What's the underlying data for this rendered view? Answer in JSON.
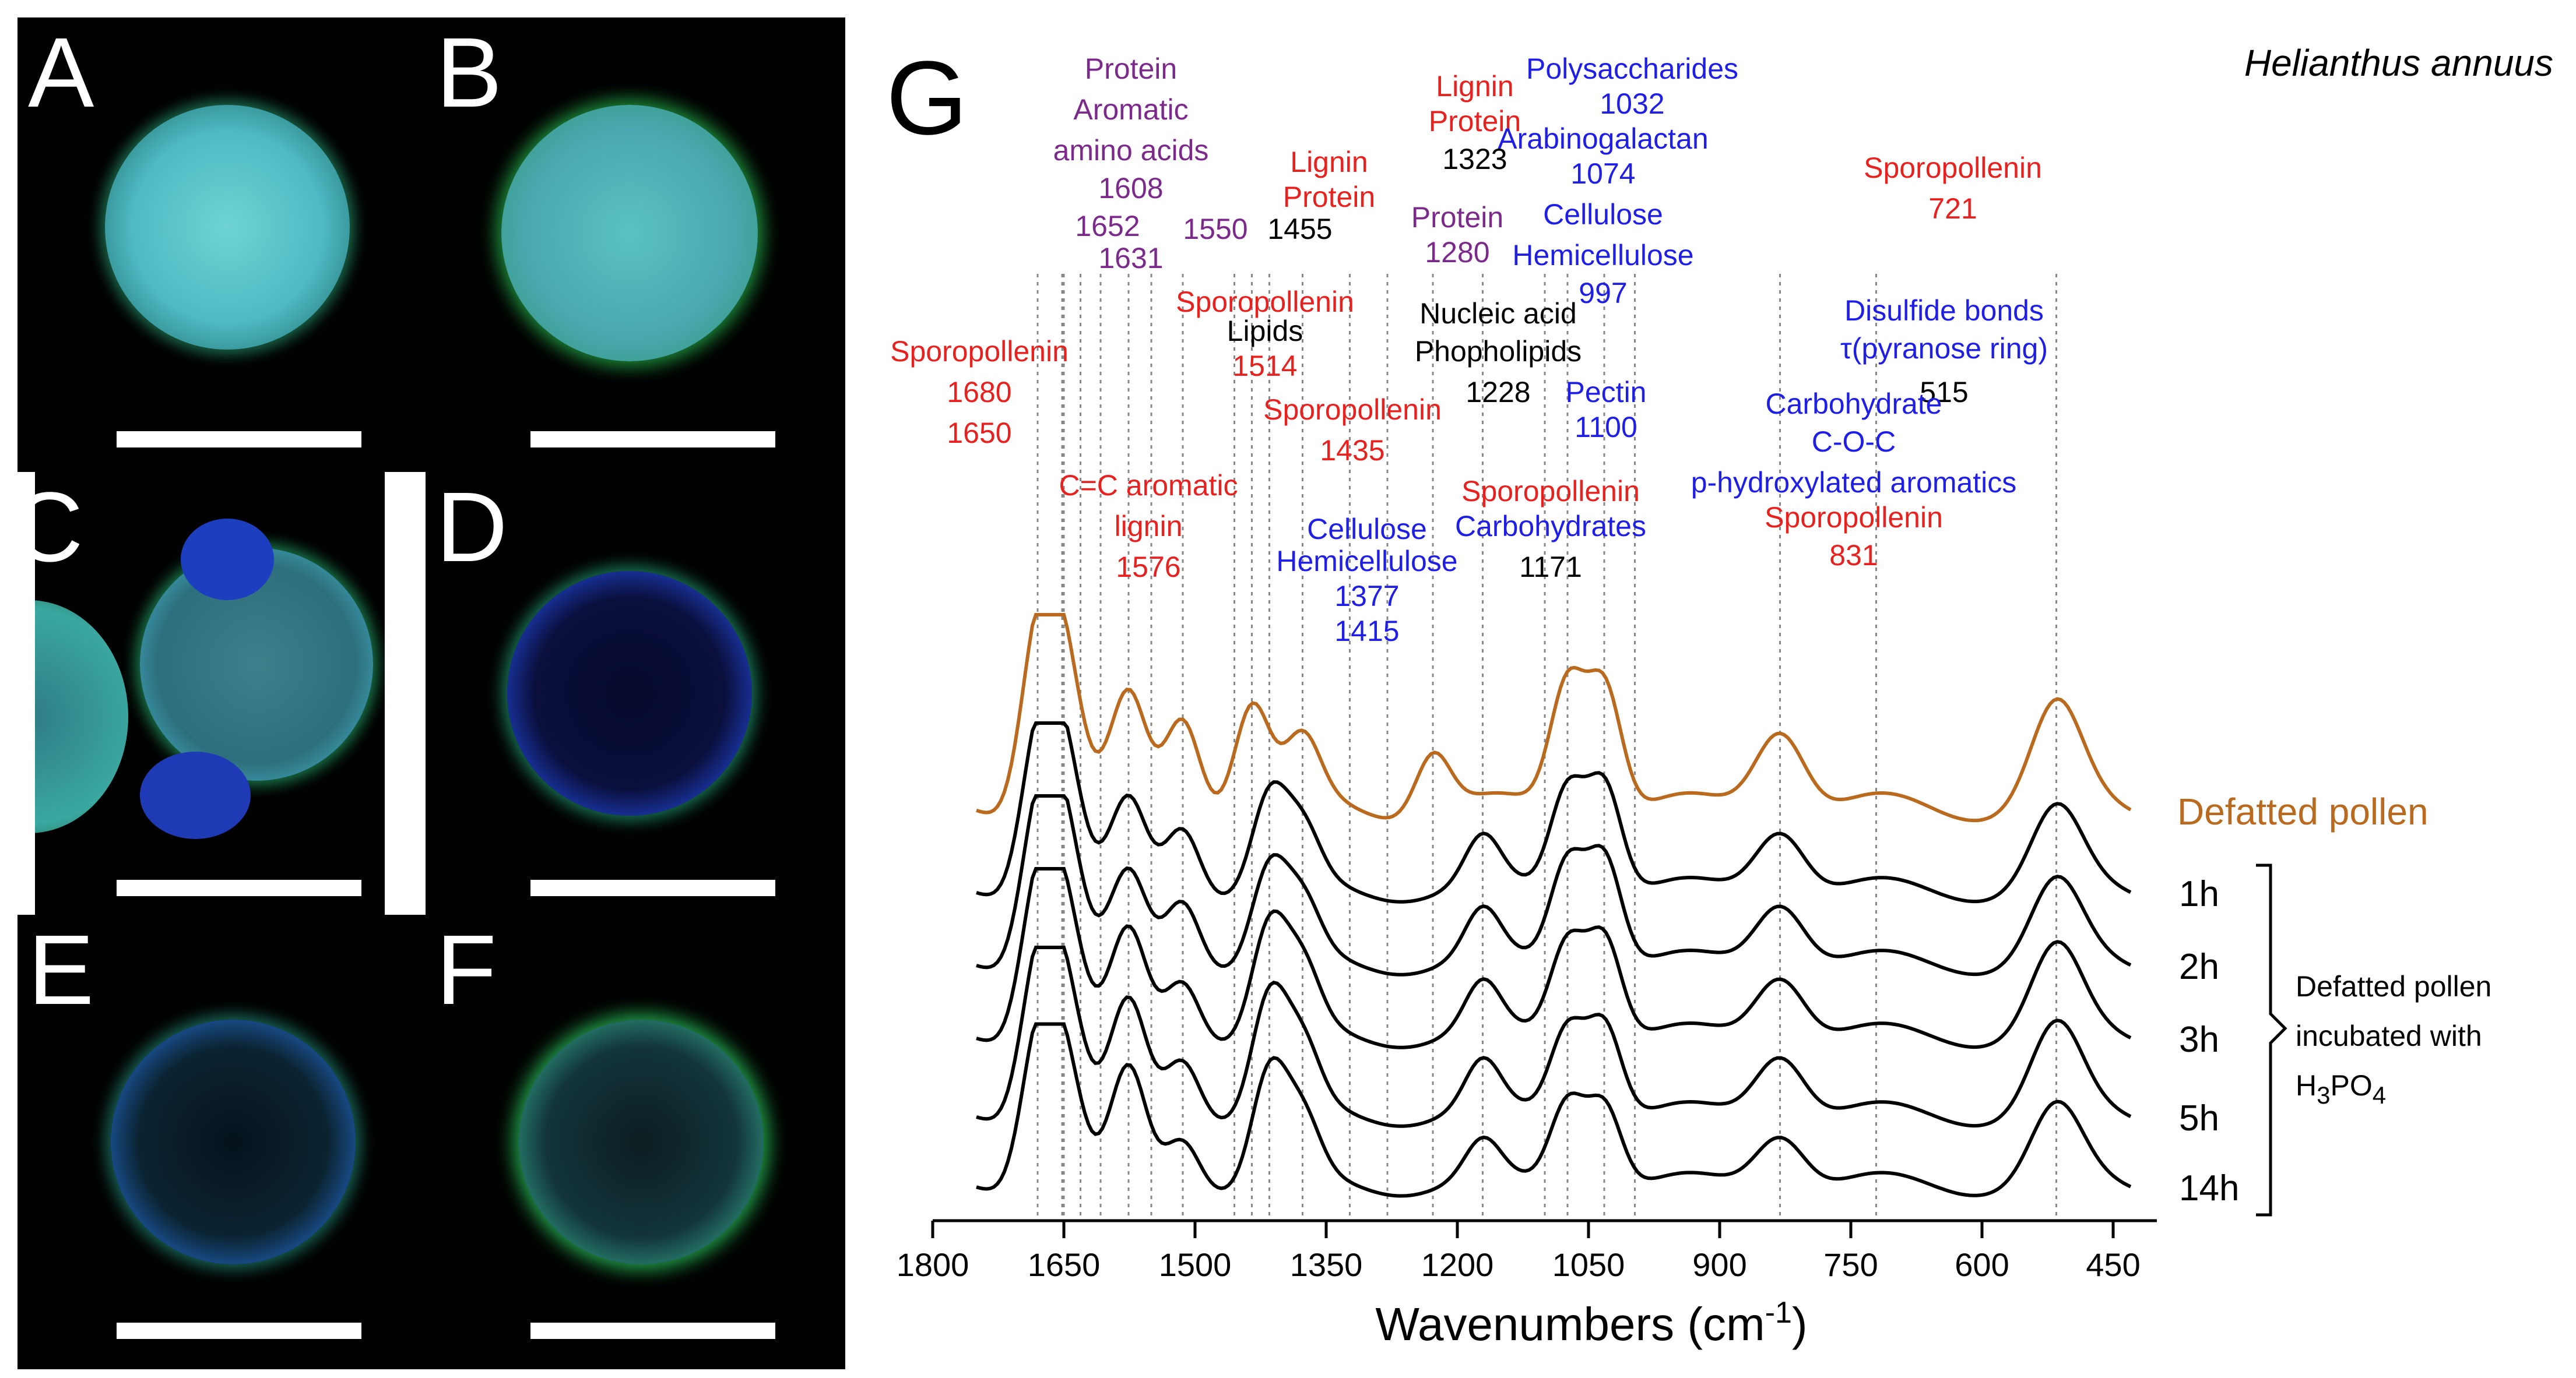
{
  "panels": [
    "A",
    "B",
    "C",
    "D",
    "E",
    "F"
  ],
  "panel_g_letter": "G",
  "species": "Helianthus annuus",
  "colors": {
    "defatted": "#b96a1e",
    "series": "#000000",
    "red": "#e8201e",
    "purple": "#7b2a8c",
    "blue": "#1e1ee6",
    "black": "#000000"
  },
  "annotations": [
    {
      "text": "Protein",
      "color": "purple"
    },
    {
      "text": "Aromatic",
      "color": "purple"
    },
    {
      "text": "amino acids",
      "color": "purple"
    },
    {
      "text": "1608",
      "color": "purple"
    },
    {
      "text": "1652",
      "color": "purple"
    },
    {
      "text": "1550",
      "color": "purple"
    },
    {
      "text": "1631",
      "color": "purple"
    },
    {
      "text": "Lignin",
      "color": "red"
    },
    {
      "text": "Protein",
      "color": "red"
    },
    {
      "text": "1455",
      "color": "black"
    },
    {
      "text": "Lignin",
      "color": "red"
    },
    {
      "text": "Protein",
      "color": "red"
    },
    {
      "text": "1323",
      "color": "black"
    },
    {
      "text": "Protein",
      "color": "purple"
    },
    {
      "text": "1280",
      "color": "purple"
    },
    {
      "text": "Polysaccharides",
      "color": "blue"
    },
    {
      "text": "1032",
      "color": "blue"
    },
    {
      "text": "Arabinogalactan",
      "color": "blue"
    },
    {
      "text": "1074",
      "color": "blue"
    },
    {
      "text": "Cellulose",
      "color": "blue"
    },
    {
      "text": "Hemicellulose",
      "color": "blue"
    },
    {
      "text": "997",
      "color": "blue"
    },
    {
      "text": "Sporopollenin",
      "color": "red"
    },
    {
      "text": "721",
      "color": "red"
    },
    {
      "text": "Sporopollenin",
      "color": "red"
    },
    {
      "text": "Lipids",
      "color": "black"
    },
    {
      "text": "1514",
      "color": "red"
    },
    {
      "text": "Sporopollenin",
      "color": "red"
    },
    {
      "text": "1680",
      "color": "red"
    },
    {
      "text": "1650",
      "color": "red"
    },
    {
      "text": "Sporopollenin",
      "color": "red"
    },
    {
      "text": "1435",
      "color": "red"
    },
    {
      "text": "Nucleic acid",
      "color": "black"
    },
    {
      "text": "Phopholipids",
      "color": "black"
    },
    {
      "text": "1228",
      "color": "black"
    },
    {
      "text": "Pectin",
      "color": "blue"
    },
    {
      "text": "1100",
      "color": "blue"
    },
    {
      "text": "Disulfide bonds",
      "color": "blue"
    },
    {
      "text": "τ(pyranose ring)",
      "color": "blue"
    },
    {
      "text": "515",
      "color": "black"
    },
    {
      "text": "Carbohydrate",
      "color": "blue"
    },
    {
      "text": "C-O-C",
      "color": "blue"
    },
    {
      "text": "p-hydroxylated aromatics",
      "color": "blue"
    },
    {
      "text": "Sporopollenin",
      "color": "red"
    },
    {
      "text": "831",
      "color": "red"
    },
    {
      "text": "C=C aromatic",
      "color": "red"
    },
    {
      "text": "lignin",
      "color": "red"
    },
    {
      "text": "1576",
      "color": "red"
    },
    {
      "text": "Cellulose",
      "color": "blue"
    },
    {
      "text": "Hemicellulose",
      "color": "blue"
    },
    {
      "text": "1377",
      "color": "blue"
    },
    {
      "text": "1415",
      "color": "blue"
    },
    {
      "text": "Sporopollenin",
      "color": "red"
    },
    {
      "text": "Carbohydrates",
      "color": "blue"
    },
    {
      "text": "1171",
      "color": "black"
    }
  ],
  "chart_data": {
    "type": "line",
    "xlabel": "Wavenumbers (cm",
    "xlabel_sup": "-1",
    "xlabel_end": ")",
    "xlim": [
      1800,
      400
    ],
    "xticks": [
      1800,
      1650,
      1500,
      1350,
      1200,
      1050,
      900,
      750,
      600,
      450
    ],
    "peak_lines": [
      1680,
      1652,
      1650,
      1631,
      1608,
      1576,
      1550,
      1514,
      1455,
      1435,
      1415,
      1377,
      1323,
      1280,
      1228,
      1171,
      1100,
      1074,
      1032,
      997,
      831,
      721,
      515
    ],
    "series": [
      {
        "name": "Defatted pollen",
        "style": "defatted",
        "peaks": [
          [
            1680,
            1.0
          ],
          [
            1650,
            0.8
          ],
          [
            1576,
            0.6
          ],
          [
            1514,
            0.55
          ],
          [
            1435,
            0.6
          ],
          [
            1377,
            0.35
          ],
          [
            1228,
            0.35
          ],
          [
            1074,
            0.75
          ],
          [
            1032,
            0.75
          ],
          [
            831,
            0.5
          ],
          [
            515,
            0.55
          ]
        ]
      },
      {
        "name": "1h",
        "style": "series",
        "peaks": [
          [
            1680,
            1.0
          ],
          [
            1650,
            0.85
          ],
          [
            1576,
            0.55
          ],
          [
            1514,
            0.45
          ],
          [
            1415,
            0.6
          ],
          [
            1377,
            0.35
          ],
          [
            1171,
            0.3
          ],
          [
            1074,
            0.7
          ],
          [
            1032,
            0.75
          ],
          [
            831,
            0.45
          ],
          [
            515,
            0.5
          ]
        ]
      },
      {
        "name": "2h",
        "style": "series",
        "peaks": [
          [
            1680,
            1.0
          ],
          [
            1650,
            0.85
          ],
          [
            1576,
            0.55
          ],
          [
            1514,
            0.45
          ],
          [
            1415,
            0.6
          ],
          [
            1377,
            0.35
          ],
          [
            1171,
            0.3
          ],
          [
            1074,
            0.7
          ],
          [
            1032,
            0.75
          ],
          [
            831,
            0.45
          ],
          [
            515,
            0.5
          ]
        ]
      },
      {
        "name": "3h",
        "style": "series",
        "peaks": [
          [
            1680,
            1.0
          ],
          [
            1650,
            0.8
          ],
          [
            1576,
            0.65
          ],
          [
            1514,
            0.4
          ],
          [
            1415,
            0.7
          ],
          [
            1377,
            0.4
          ],
          [
            1171,
            0.3
          ],
          [
            1074,
            0.65
          ],
          [
            1032,
            0.7
          ],
          [
            831,
            0.45
          ],
          [
            515,
            0.55
          ]
        ]
      },
      {
        "name": "5h",
        "style": "series",
        "peaks": [
          [
            1680,
            1.0
          ],
          [
            1650,
            0.8
          ],
          [
            1576,
            0.7
          ],
          [
            1514,
            0.4
          ],
          [
            1415,
            0.75
          ],
          [
            1377,
            0.4
          ],
          [
            1171,
            0.3
          ],
          [
            1074,
            0.6
          ],
          [
            1032,
            0.65
          ],
          [
            831,
            0.45
          ],
          [
            515,
            0.55
          ]
        ]
      },
      {
        "name": "14h",
        "style": "series",
        "peaks": [
          [
            1680,
            1.0
          ],
          [
            1650,
            0.8
          ],
          [
            1576,
            0.75
          ],
          [
            1514,
            0.35
          ],
          [
            1415,
            0.75
          ],
          [
            1377,
            0.4
          ],
          [
            1171,
            0.25
          ],
          [
            1074,
            0.6
          ],
          [
            1032,
            0.6
          ],
          [
            831,
            0.4
          ],
          [
            515,
            0.5
          ]
        ]
      }
    ],
    "bracket_label": [
      "Defatted pollen",
      "incubated with"
    ],
    "bracket_formula": {
      "H": "H",
      "3": "3",
      "PO": "PO",
      "4": "4"
    }
  }
}
